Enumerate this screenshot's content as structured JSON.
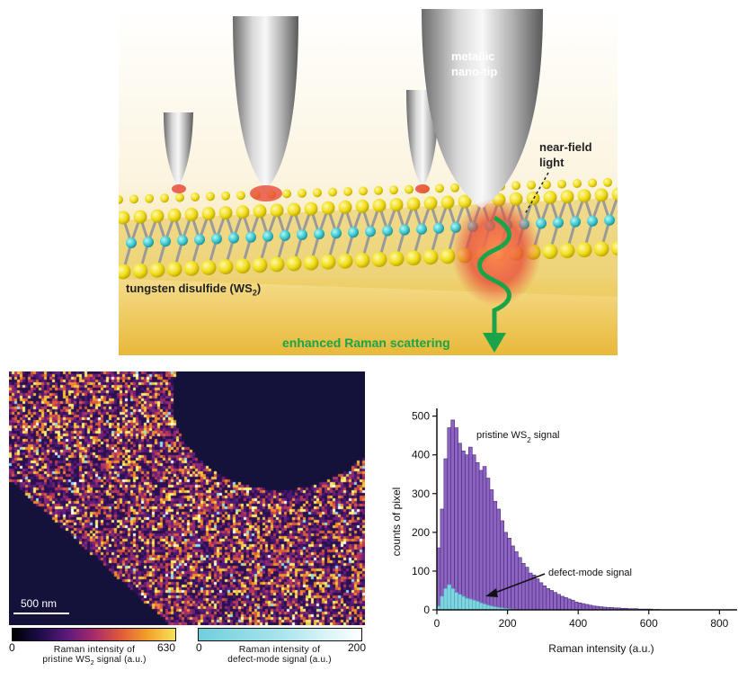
{
  "illustration": {
    "tip_label_line1": "metallic",
    "tip_label_line2": "nano-tip",
    "nearfield_line1": "near-field",
    "nearfield_line2": "light",
    "material_label": "tungsten disulfide (WS",
    "material_sub": "2",
    "material_close": ")",
    "scatter_label": "enhanced Raman scattering",
    "colors": {
      "sulfur": "#f2e01a",
      "tungsten": "#3ec9cf",
      "arrow": "#1aa44a",
      "tip_glow": "#e84a3a"
    }
  },
  "map": {
    "scale_label": "500 nm",
    "colorbar_pristine": {
      "min": "0",
      "max": "630",
      "line1": "Raman intensity of",
      "line2_pre": "pristine WS",
      "line2_sub": "2",
      "line2_post": " signal (a.u.)"
    },
    "colorbar_defect": {
      "min": "0",
      "max": "200",
      "line1": "Raman intensity of",
      "line2": "defect-mode signal (a.u.)"
    }
  },
  "chart_data": {
    "type": "bar",
    "xlabel": "Raman intensity (a.u.)",
    "ylabel": "counts of pixel",
    "xlim": [
      0,
      850
    ],
    "ylim": [
      0,
      520
    ],
    "xticks": [
      0,
      200,
      400,
      600,
      800
    ],
    "yticks": [
      0,
      100,
      200,
      300,
      400,
      500
    ],
    "bin_width": 10,
    "series": [
      {
        "name": "pristine WS2 signal",
        "color": "#8d63c2",
        "x": [
          10,
          20,
          30,
          40,
          50,
          60,
          70,
          80,
          90,
          100,
          110,
          120,
          130,
          140,
          150,
          160,
          170,
          180,
          190,
          200,
          210,
          220,
          230,
          240,
          250,
          260,
          270,
          280,
          290,
          300,
          310,
          320,
          330,
          340,
          350,
          360,
          370,
          380,
          390,
          400,
          410,
          420,
          430,
          440,
          450,
          460,
          470,
          480,
          490,
          500,
          510,
          520,
          530,
          540,
          550,
          560,
          570,
          580,
          590,
          600,
          610,
          620,
          630
        ],
        "values": [
          160,
          260,
          390,
          470,
          490,
          470,
          430,
          410,
          400,
          420,
          400,
          380,
          360,
          370,
          340,
          310,
          280,
          260,
          230,
          200,
          185,
          165,
          150,
          135,
          120,
          110,
          95,
          90,
          80,
          70,
          62,
          55,
          50,
          45,
          40,
          35,
          32,
          28,
          25,
          20,
          18,
          16,
          14,
          12,
          10,
          9,
          8,
          7,
          6,
          6,
          5,
          5,
          4,
          4,
          3,
          3,
          3,
          2,
          2,
          2,
          2,
          1,
          1
        ]
      },
      {
        "name": "defect-mode signal",
        "color": "#7fd4e0",
        "x": [
          10,
          20,
          30,
          40,
          50,
          60,
          70,
          80,
          90,
          100,
          110,
          120,
          130,
          140,
          150,
          160,
          170,
          180,
          190,
          200,
          210,
          220
        ],
        "values": [
          10,
          35,
          55,
          65,
          55,
          45,
          40,
          35,
          30,
          28,
          25,
          22,
          18,
          15,
          12,
          10,
          8,
          6,
          5,
          4,
          3,
          2
        ]
      }
    ],
    "annotations": [
      {
        "text_pre": "pristine WS",
        "text_sub": "2",
        "text_post": " signal"
      },
      {
        "text": "defect-mode signal"
      }
    ]
  }
}
